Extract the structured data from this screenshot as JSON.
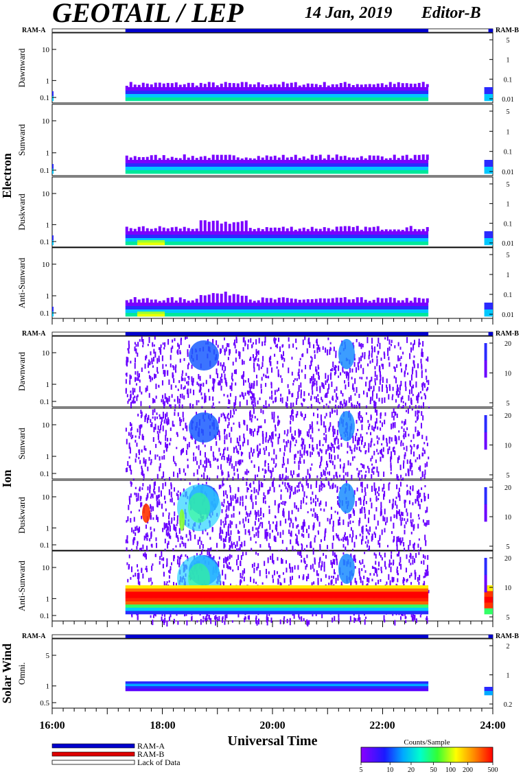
{
  "header": {
    "title": "GEOTAIL / LEP",
    "date": "14 Jan, 2019",
    "editor": "Editor-B"
  },
  "colors": {
    "ram_a": "#0000cc",
    "ram_b": "#dd0000",
    "lack": "#ffffff"
  },
  "chart_data": {
    "type": "heatmap",
    "xlabel": "Universal Time",
    "x_ticks": [
      "16:00",
      "18:00",
      "20:00",
      "22:00",
      "24:00"
    ],
    "x_range_hours": [
      16,
      24
    ],
    "ram_a_interval_hours": [
      17.33,
      22.83
    ],
    "ram_b_interval_hours": [
      23.92,
      24.0
    ],
    "groups": [
      {
        "name": "Electron",
        "left_ticks": [
          "10",
          "1",
          "0.1"
        ],
        "right_ticks": [
          "5",
          "1",
          "0.1",
          "0.01"
        ],
        "panels": [
          "Dawnward",
          "Sunward",
          "Duskward",
          "Anti-Sunward"
        ]
      },
      {
        "name": "Ion",
        "left_ticks": [
          "10",
          "1",
          "0.1"
        ],
        "right_ticks": [
          "20",
          "10",
          "5"
        ],
        "panels": [
          "Dawnward",
          "Sunward",
          "Duskward",
          "Anti-Sunward"
        ]
      },
      {
        "name": "Solar Wind",
        "left_ticks": [
          "5",
          "1",
          "0.5"
        ],
        "right_ticks": [
          "2",
          "1",
          "0.2"
        ],
        "panels": [
          "Omni."
        ]
      }
    ],
    "ram_labels": {
      "a": "RAM-A",
      "b": "RAM-B"
    },
    "legend": {
      "items": [
        "RAM-A",
        "RAM-B",
        "Lack of Data"
      ]
    },
    "colorbar": {
      "title": "Counts/Sample",
      "ticks": [
        "5",
        "10",
        "20",
        "50",
        "100",
        "200",
        "500"
      ]
    }
  }
}
